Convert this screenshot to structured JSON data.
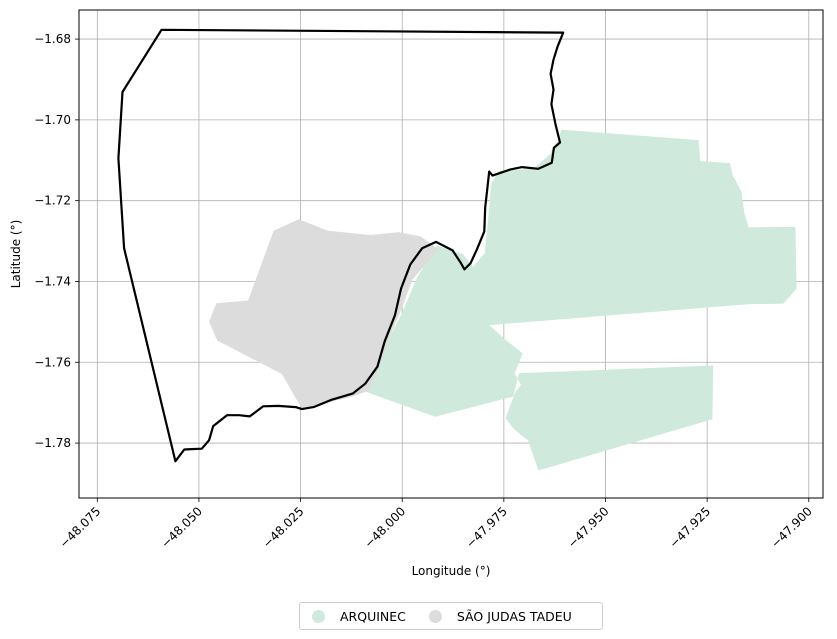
{
  "chart_data": {
    "type": "map",
    "xlabel": "Longitude (°)",
    "ylabel": "Latitude (°)",
    "xlim": [
      -48.0795,
      -47.8965
    ],
    "ylim": [
      -1.7936,
      -1.6728
    ],
    "xticks": [
      -48.075,
      -48.05,
      -48.025,
      -48.0,
      -47.975,
      -47.95,
      -47.925,
      -47.9
    ],
    "xtick_labels": [
      "−48.075",
      "−48.050",
      "−48.025",
      "−48.000",
      "−47.975",
      "−47.950",
      "−47.925",
      "−47.900"
    ],
    "yticks": [
      -1.68,
      -1.7,
      -1.72,
      -1.74,
      -1.76,
      -1.78
    ],
    "ytick_labels": [
      "−1.68",
      "−1.70",
      "−1.72",
      "−1.74",
      "−1.76",
      "−1.78"
    ],
    "grid": true,
    "legend_position": "bottom-center",
    "regions": [
      {
        "name": "ARQUINEC",
        "color": "#cfeadc",
        "coordinates": [
          [
            -47.9609,
            -1.7024
          ],
          [
            -47.9271,
            -1.705
          ],
          [
            -47.9267,
            -1.7102
          ],
          [
            -47.9194,
            -1.7107
          ],
          [
            -47.9187,
            -1.7137
          ],
          [
            -47.9166,
            -1.7177
          ],
          [
            -47.9158,
            -1.7232
          ],
          [
            -47.9148,
            -1.7266
          ],
          [
            -47.9033,
            -1.7265
          ],
          [
            -47.903,
            -1.7418
          ],
          [
            -47.9063,
            -1.7455
          ],
          [
            -47.9145,
            -1.7456
          ],
          [
            -47.9786,
            -1.7508
          ],
          [
            -47.9745,
            -1.7545
          ],
          [
            -47.9704,
            -1.7578
          ],
          [
            -47.9723,
            -1.7627
          ],
          [
            -47.9708,
            -1.7656
          ],
          [
            -47.9723,
            -1.7676
          ],
          [
            -47.9746,
            -1.7739
          ],
          [
            -47.9725,
            -1.7766
          ],
          [
            -47.969,
            -1.7794
          ],
          [
            -47.9665,
            -1.7868
          ],
          [
            -47.9237,
            -1.7741
          ],
          [
            -47.9235,
            -1.7608
          ],
          [
            -47.9713,
            -1.7627
          ],
          [
            -47.9727,
            -1.7685
          ],
          [
            -47.9919,
            -1.7735
          ],
          [
            -48.0096,
            -1.7671
          ],
          [
            -48.0077,
            -1.7613
          ],
          [
            -48.0043,
            -1.7561
          ],
          [
            -48.0001,
            -1.7479
          ],
          [
            -47.9963,
            -1.7389
          ],
          [
            -47.9915,
            -1.7311
          ],
          [
            -47.9851,
            -1.7332
          ],
          [
            -47.9826,
            -1.7364
          ],
          [
            -47.9797,
            -1.733
          ],
          [
            -47.9786,
            -1.7218
          ],
          [
            -47.9781,
            -1.7158
          ],
          [
            -47.9763,
            -1.7127
          ],
          [
            -47.9677,
            -1.7121
          ],
          [
            -47.9637,
            -1.7085
          ],
          [
            -47.9614,
            -1.7045
          ]
        ]
      },
      {
        "name": "SÃO JUDAS TADEU",
        "color": "#dcdcdc",
        "coordinates": [
          [
            -48.0316,
            -1.7274
          ],
          [
            -48.0254,
            -1.7246
          ],
          [
            -48.0184,
            -1.7274
          ],
          [
            -48.0079,
            -1.7285
          ],
          [
            -48.0009,
            -1.7278
          ],
          [
            -47.9955,
            -1.7288
          ],
          [
            -47.991,
            -1.7321
          ],
          [
            -47.9975,
            -1.7395
          ],
          [
            -48.0003,
            -1.7472
          ],
          [
            -48.0037,
            -1.7551
          ],
          [
            -48.0058,
            -1.7616
          ],
          [
            -48.0079,
            -1.7669
          ],
          [
            -48.0119,
            -1.7684
          ],
          [
            -48.0169,
            -1.7696
          ],
          [
            -48.0247,
            -1.7715
          ],
          [
            -48.0296,
            -1.7629
          ],
          [
            -48.0455,
            -1.7546
          ],
          [
            -48.0475,
            -1.7499
          ],
          [
            -48.0457,
            -1.7454
          ],
          [
            -48.0379,
            -1.7447
          ]
        ]
      }
    ],
    "boundary": {
      "coordinates": [
        [
          -48.0592,
          -1.6777
        ],
        [
          -47.9604,
          -1.6784
        ],
        [
          -47.9618,
          -1.6819
        ],
        [
          -47.9628,
          -1.6851
        ],
        [
          -47.9635,
          -1.6886
        ],
        [
          -47.9628,
          -1.6925
        ],
        [
          -47.9633,
          -1.6961
        ],
        [
          -47.9623,
          -1.7011
        ],
        [
          -47.9612,
          -1.7056
        ],
        [
          -47.9627,
          -1.7069
        ],
        [
          -47.9632,
          -1.7106
        ],
        [
          -47.9665,
          -1.7121
        ],
        [
          -47.9705,
          -1.7117
        ],
        [
          -47.9735,
          -1.7123
        ],
        [
          -47.9778,
          -1.7138
        ],
        [
          -47.9786,
          -1.7128
        ],
        [
          -47.9796,
          -1.7217
        ],
        [
          -47.9798,
          -1.7276
        ],
        [
          -47.9816,
          -1.732
        ],
        [
          -47.9832,
          -1.7355
        ],
        [
          -47.9847,
          -1.737
        ],
        [
          -47.9856,
          -1.7354
        ],
        [
          -47.9876,
          -1.7323
        ],
        [
          -47.9917,
          -1.7302
        ],
        [
          -47.9951,
          -1.7318
        ],
        [
          -47.998,
          -1.7358
        ],
        [
          -48.0003,
          -1.7418
        ],
        [
          -48.0018,
          -1.7484
        ],
        [
          -48.0043,
          -1.7548
        ],
        [
          -48.0061,
          -1.7611
        ],
        [
          -48.0091,
          -1.7653
        ],
        [
          -48.0121,
          -1.7677
        ],
        [
          -48.0174,
          -1.7693
        ],
        [
          -48.0218,
          -1.7711
        ],
        [
          -48.0247,
          -1.7716
        ],
        [
          -48.0262,
          -1.7711
        ],
        [
          -48.0305,
          -1.7708
        ],
        [
          -48.0342,
          -1.7709
        ],
        [
          -48.0375,
          -1.7734
        ],
        [
          -48.0401,
          -1.7731
        ],
        [
          -48.0431,
          -1.7731
        ],
        [
          -48.0465,
          -1.7758
        ],
        [
          -48.0475,
          -1.7793
        ],
        [
          -48.0493,
          -1.7814
        ],
        [
          -48.0518,
          -1.7815
        ],
        [
          -48.0536,
          -1.7816
        ],
        [
          -48.0558,
          -1.7845
        ],
        [
          -48.0684,
          -1.7318
        ],
        [
          -48.0698,
          -1.7095
        ],
        [
          -48.0688,
          -1.6931
        ]
      ]
    }
  },
  "legend": {
    "items": [
      {
        "label": "ARQUINEC",
        "color": "#cfeadc"
      },
      {
        "label": "SÃO JUDAS TADEU",
        "color": "#dcdcdc"
      }
    ]
  }
}
